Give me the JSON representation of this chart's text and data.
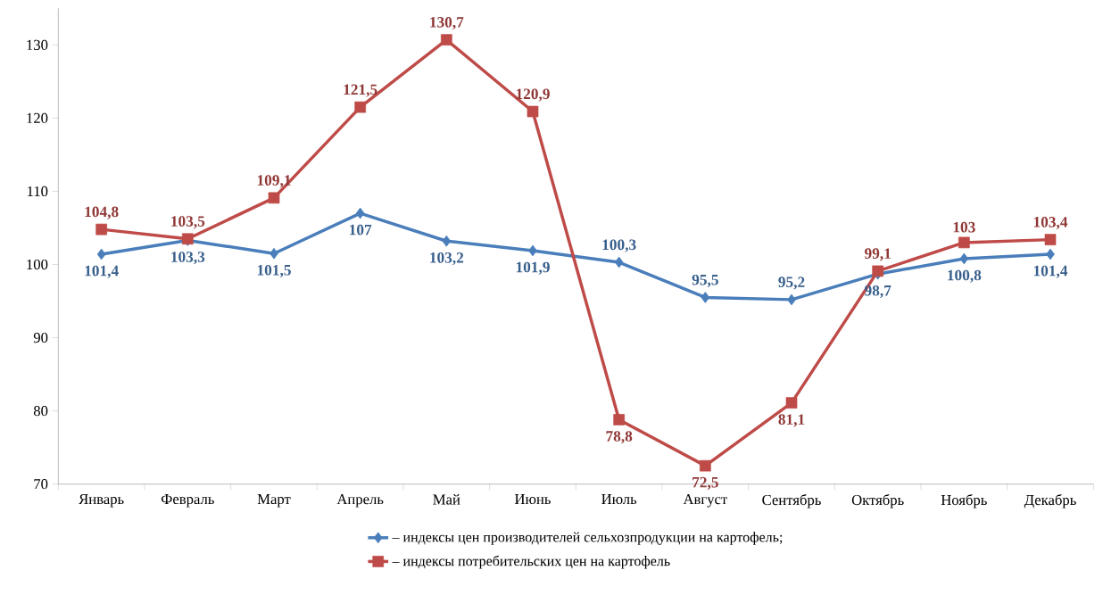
{
  "chart_data": {
    "type": "line",
    "categories": [
      "Январь",
      "Февраль",
      "Март",
      "Апрель",
      "Май",
      "Июнь",
      "Июль",
      "Август",
      "Сентябрь",
      "Октябрь",
      "Ноябрь",
      "Декабрь"
    ],
    "series": [
      {
        "name": "– индексы цен производителей сельхозпродукции на картофель;",
        "color": "#4a7ebb",
        "marker": "diamond",
        "values": [
          101.4,
          103.3,
          101.5,
          107,
          103.2,
          101.9,
          100.3,
          95.5,
          95.2,
          98.7,
          100.8,
          101.4
        ],
        "value_labels": [
          "101,4",
          "103,3",
          "101,5",
          "107",
          "103,2",
          "101,9",
          "100,3",
          "95,5",
          "95,2",
          "98,7",
          "100,8",
          "101,4"
        ]
      },
      {
        "name": "– индексы потребительских цен на картофель",
        "color": "#be4b48",
        "marker": "square",
        "values": [
          104.8,
          103.5,
          109.1,
          121.5,
          130.7,
          120.9,
          78.8,
          72.5,
          81.1,
          99.1,
          103,
          103.4
        ],
        "value_labels": [
          "104,8",
          "103,5",
          "109,1",
          "121,5",
          "130,7",
          "120,9",
          "78,8",
          "72,5",
          "81,1",
          "99,1",
          "103",
          "103,4"
        ]
      }
    ],
    "ylim": [
      70,
      135
    ],
    "yticks": [
      70,
      80,
      90,
      100,
      110,
      120,
      130
    ],
    "grid": false,
    "legend": "bottom"
  }
}
